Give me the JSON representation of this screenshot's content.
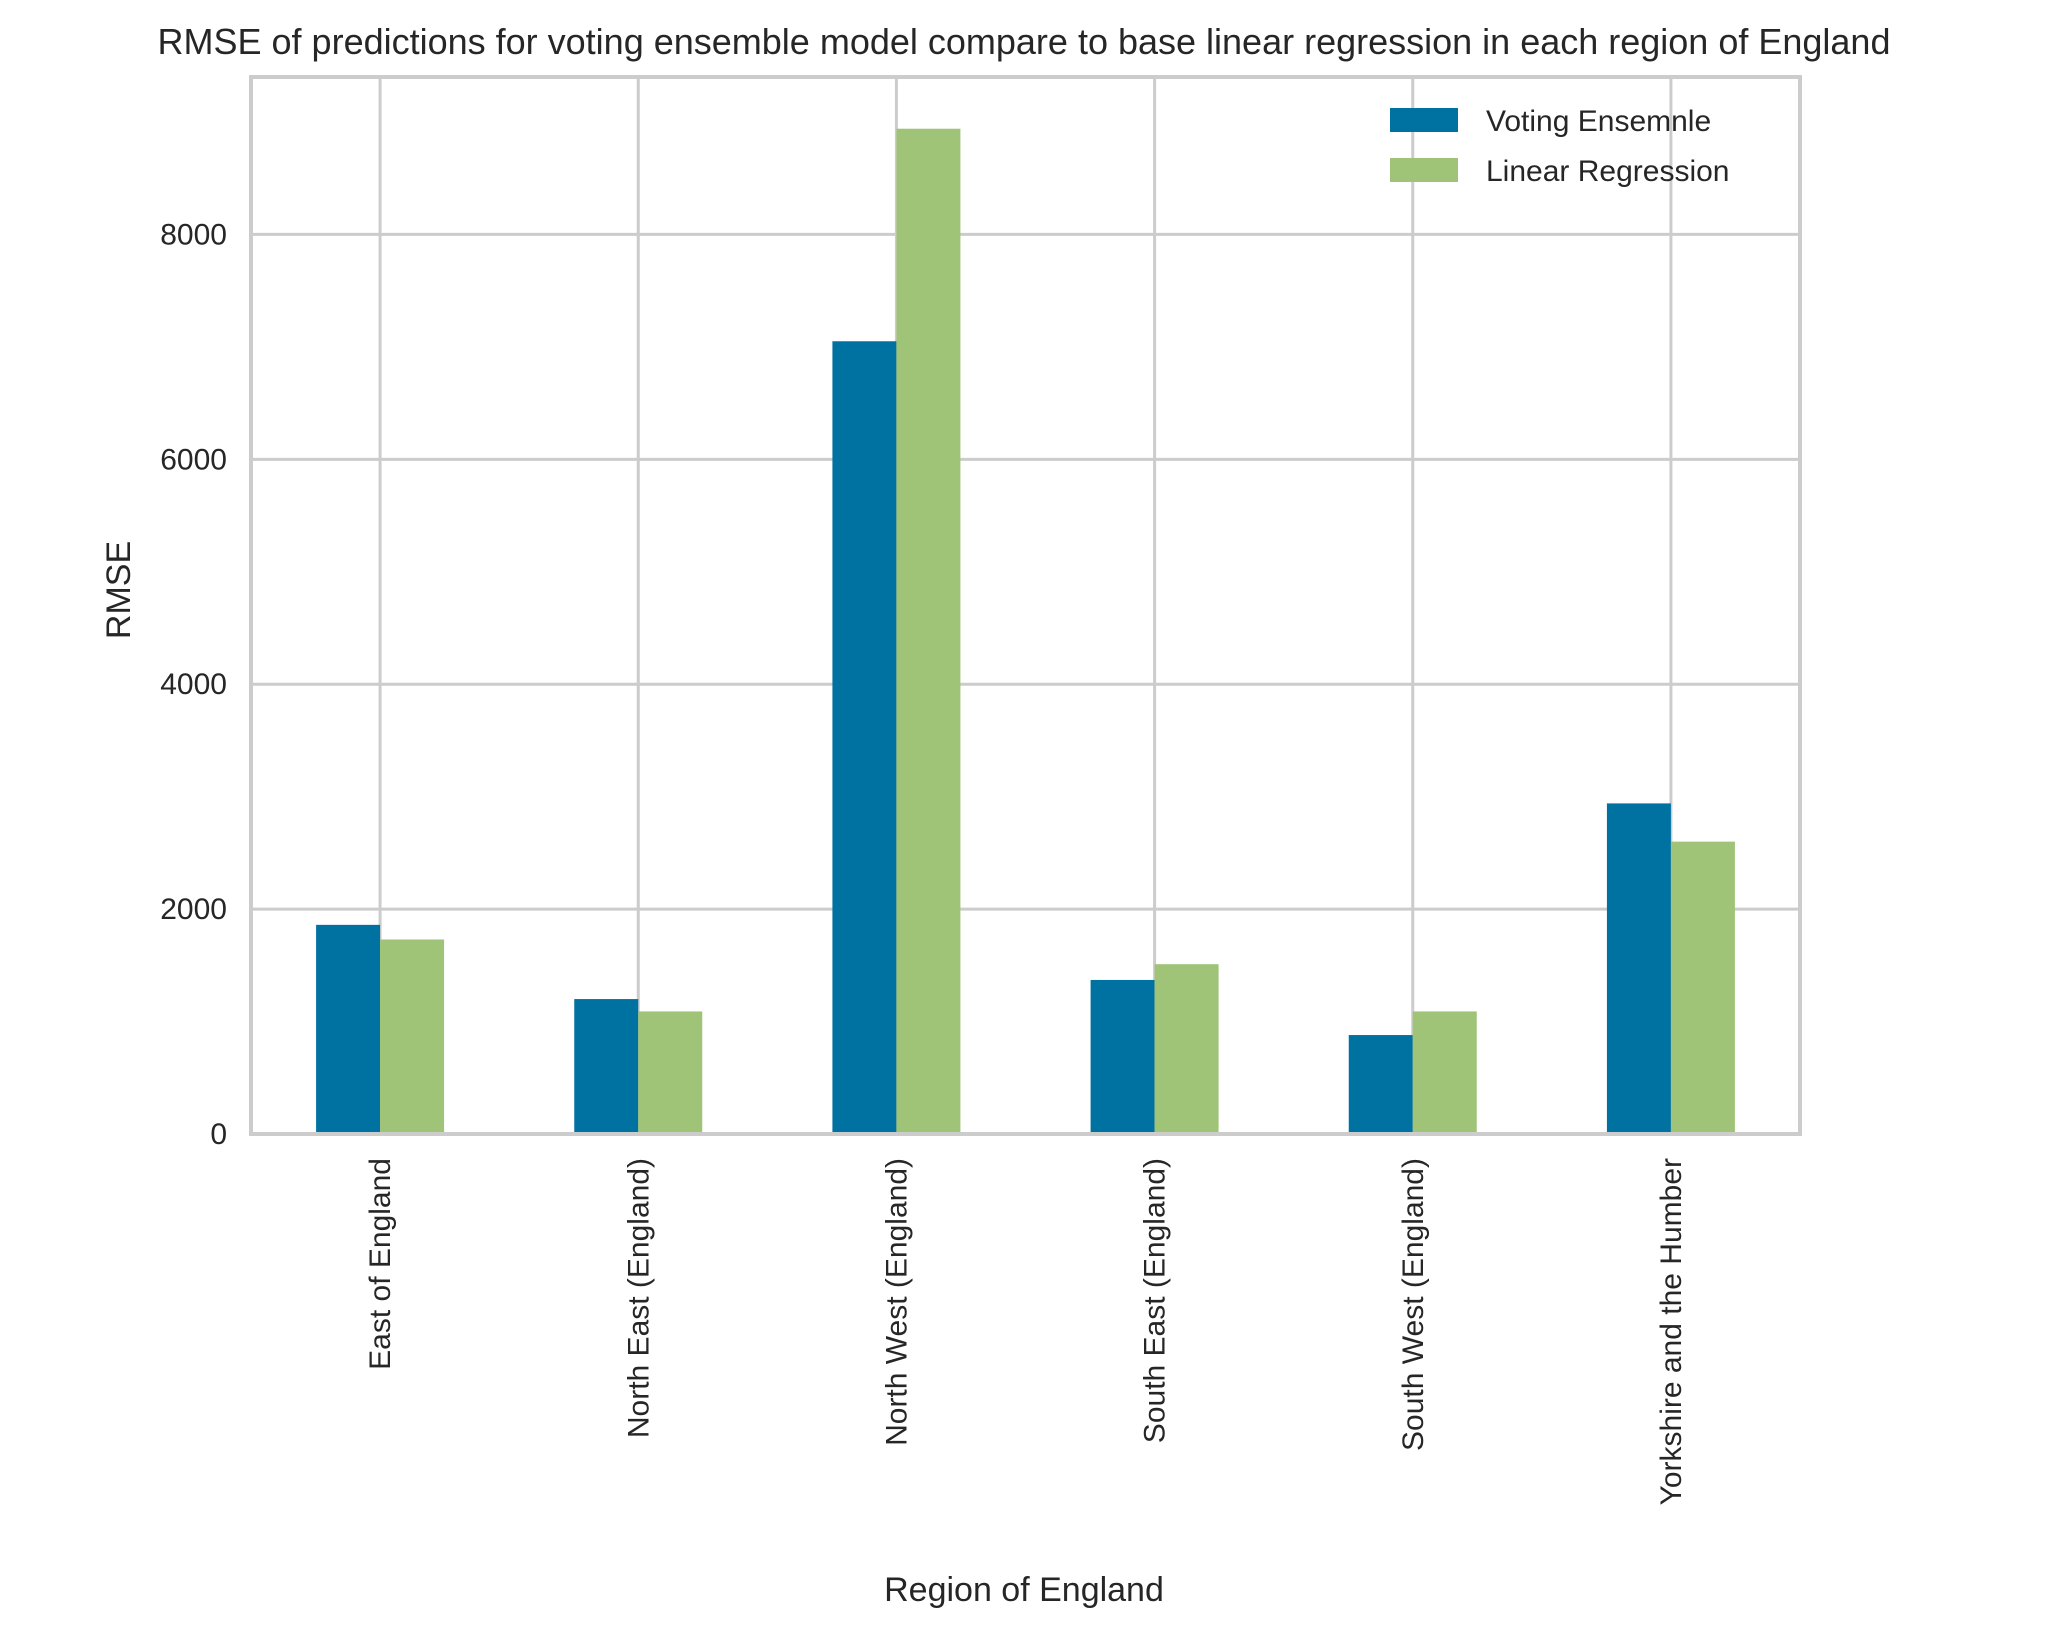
{
  "chart_data": {
    "type": "bar",
    "title": "RMSE of predictions for voting ensemble model compare to base linear regression in each region of England",
    "xlabel": "Region of England",
    "ylabel": "RMSE",
    "categories": [
      "East of England",
      "North East (England)",
      "North West (England)",
      "South East (England)",
      "South West (England)",
      "Yorkshire and the Humber"
    ],
    "series": [
      {
        "name": "Voting Ensemnle",
        "color": "#0072a2",
        "values": [
          1860,
          1200,
          7050,
          1370,
          880,
          2940
        ]
      },
      {
        "name": "Linear Regression",
        "color": "#9fc377",
        "values": [
          1730,
          1090,
          8940,
          1510,
          1090,
          2600
        ]
      }
    ],
    "ylim": [
      0,
      9400
    ],
    "yticks": [
      0,
      2000,
      4000,
      6000,
      8000
    ],
    "ytick_labels": [
      "0",
      "2000",
      "4000",
      "6000",
      "8000"
    ],
    "grid": true,
    "legend_position": "top-right"
  }
}
